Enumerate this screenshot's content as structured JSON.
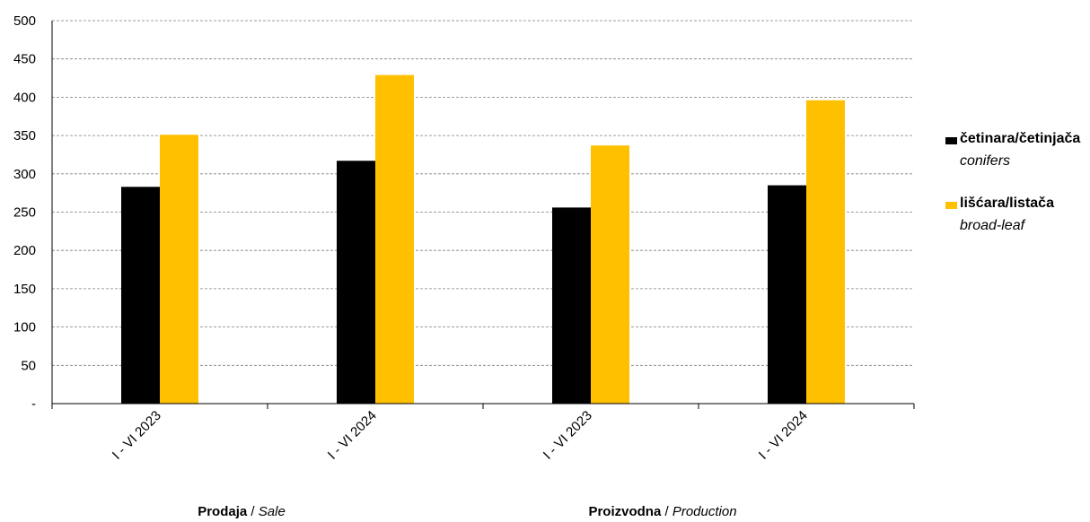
{
  "chart_data": {
    "type": "bar",
    "categories": [
      "I - VI 2023",
      "I - VI 2024",
      "I - VI 2023",
      "I - VI 2024"
    ],
    "groups": [
      {
        "label": "Prodaja",
        "label_en": "Sale",
        "categories": [
          "I - VI 2023",
          "I - VI 2024"
        ]
      },
      {
        "label": "Proizvodna",
        "label_en": "Production",
        "categories": [
          "I - VI 2023",
          "I - VI 2024"
        ]
      }
    ],
    "series": [
      {
        "name": "četinara/četinjača",
        "name_en": "conifers",
        "color": "#000000",
        "values": [
          283,
          317,
          256,
          285
        ]
      },
      {
        "name": "lišćara/listača",
        "name_en": "broad-leaf",
        "color": "#ffc000",
        "values": [
          351,
          429,
          337,
          396
        ]
      }
    ],
    "ylim": [
      0,
      500
    ],
    "yticks": [
      0,
      50,
      100,
      150,
      200,
      250,
      300,
      350,
      400,
      450,
      500
    ],
    "ytick_labels": [
      "-",
      "50",
      "100",
      "150",
      "200",
      "250",
      "300",
      "350",
      "400",
      "450",
      "500"
    ],
    "grid": true,
    "legend_position": "right"
  }
}
